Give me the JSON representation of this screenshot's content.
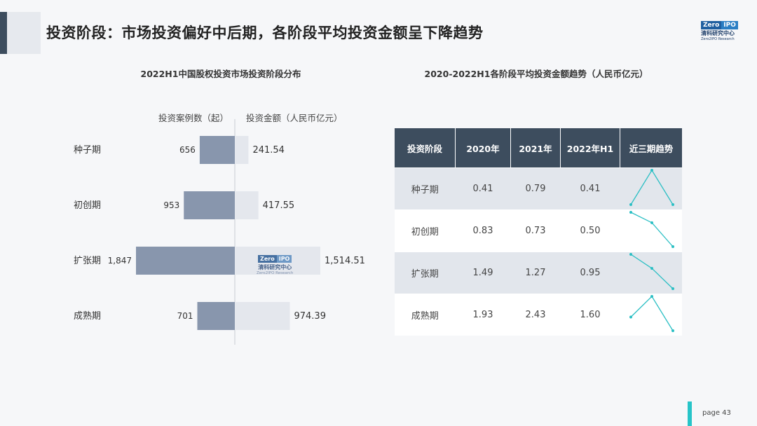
{
  "page_title": "投资阶段：市场投资偏好中后期，各阶段平均投资金额呈下降趋势",
  "logo": {
    "mark_left": "Zero",
    "mark_right": "IPO",
    "name_cn": "清科研究中心",
    "name_en": "Zero2IPO Research"
  },
  "watermark": {
    "mark_left": "Zero",
    "mark_right": "IPO",
    "name_cn": "清科研究中心",
    "name_en": "Zero2IPO Research"
  },
  "left_chart_title": "2022H1中国股权投资市场投资阶段分布",
  "right_chart_title": "2020-2022H1各阶段平均投资金额趋势（人民币亿元）",
  "left_col_heads": {
    "cases": "投资案例数（起）",
    "amount": "投资金额（人民币亿元）"
  },
  "colors": {
    "cases_bar": "#8896ad",
    "amount_bar": "#e4e7ed",
    "header": "#3d4d5e",
    "sparkline": "#2bbfc4",
    "accent": "#27c4c8"
  },
  "chart_data": [
    {
      "type": "bar",
      "title": "2022H1中国股权投资市场投资阶段分布",
      "categories": [
        "种子期",
        "初创期",
        "扩张期",
        "成熟期"
      ],
      "series": [
        {
          "name": "投资案例数（起）",
          "values": [
            656,
            953,
            1847,
            701
          ],
          "labels": [
            "656",
            "953",
            "1,847",
            "701"
          ]
        },
        {
          "name": "投资金额（人民币亿元）",
          "values": [
            241.54,
            417.55,
            1514.51,
            974.39
          ],
          "labels": [
            "241.54",
            "417.55",
            "1,514.51",
            "974.39"
          ]
        }
      ]
    },
    {
      "type": "table",
      "title": "2020-2022H1各阶段平均投资金额趋势（人民币亿元）",
      "columns": [
        "投资阶段",
        "2020年",
        "2021年",
        "2022年H1",
        "近三期趋势"
      ],
      "rows": [
        {
          "stage": "种子期",
          "values": [
            0.41,
            0.79,
            0.41
          ],
          "labels": [
            "0.41",
            "0.79",
            "0.41"
          ]
        },
        {
          "stage": "初创期",
          "values": [
            0.83,
            0.73,
            0.5
          ],
          "labels": [
            "0.83",
            "0.73",
            "0.50"
          ]
        },
        {
          "stage": "扩张期",
          "values": [
            1.49,
            1.27,
            0.95
          ],
          "labels": [
            "1.49",
            "1.27",
            "0.95"
          ]
        },
        {
          "stage": "成熟期",
          "values": [
            1.93,
            2.43,
            1.6
          ],
          "labels": [
            "1.93",
            "2.43",
            "1.60"
          ]
        }
      ]
    }
  ],
  "footer": {
    "page_label": "page  43"
  }
}
